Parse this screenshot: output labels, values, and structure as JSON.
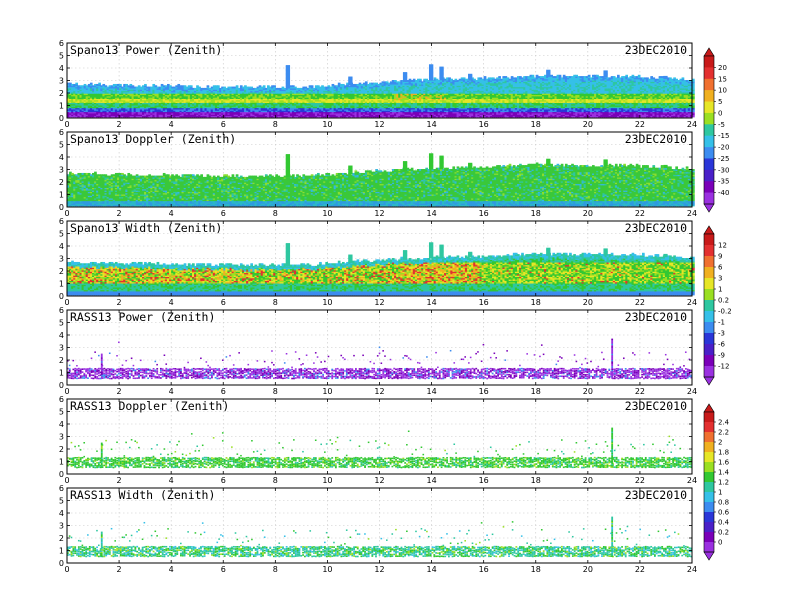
{
  "chart_data": [
    {
      "type": "heatmap",
      "title": "Spano13 Power (Zenith)",
      "date": "23DEC2010",
      "xlim": [
        0,
        24
      ],
      "ylim": [
        0,
        6
      ],
      "xticks": [
        0,
        2,
        4,
        6,
        8,
        10,
        12,
        14,
        16,
        18,
        20,
        22,
        24
      ],
      "yticks": [
        0,
        1,
        2,
        3,
        4,
        5,
        6
      ],
      "grid": true,
      "colorbar": {
        "labels": [
          "20",
          "15",
          "10",
          "5",
          "0",
          "-5",
          "-15",
          "-20",
          "-25",
          "-30",
          "-35",
          "-40"
        ],
        "extend": "both"
      },
      "top_height_km": [
        [
          0,
          2.6
        ],
        [
          6,
          2.4
        ],
        [
          9,
          2.4
        ],
        [
          12,
          2.8
        ],
        [
          14,
          3.0
        ],
        [
          16,
          3.1
        ],
        [
          18,
          3.3
        ],
        [
          22,
          3.2
        ],
        [
          24,
          3.0
        ]
      ]
    },
    {
      "type": "heatmap",
      "title": "Spano13 Doppler (Zenith)",
      "date": "23DEC2010",
      "xlim": [
        0,
        24
      ],
      "ylim": [
        0,
        6
      ],
      "xticks": [
        0,
        2,
        4,
        6,
        8,
        10,
        12,
        14,
        16,
        18,
        20,
        22,
        24
      ],
      "yticks": [
        0,
        1,
        2,
        3,
        4,
        5,
        6
      ],
      "grid": true,
      "top_height_km": [
        [
          0,
          2.6
        ],
        [
          6,
          2.4
        ],
        [
          9,
          2.4
        ],
        [
          12,
          2.8
        ],
        [
          14,
          3.0
        ],
        [
          16,
          3.1
        ],
        [
          18,
          3.3
        ],
        [
          22,
          3.2
        ],
        [
          24,
          3.0
        ]
      ]
    },
    {
      "type": "heatmap",
      "title": "Spano13 Width (Zenith)",
      "date": "23DEC2010",
      "xlim": [
        0,
        24
      ],
      "ylim": [
        0,
        6
      ],
      "xticks": [
        0,
        2,
        4,
        6,
        8,
        10,
        12,
        14,
        16,
        18,
        20,
        22,
        24
      ],
      "yticks": [
        0,
        1,
        2,
        3,
        4,
        5,
        6
      ],
      "grid": true,
      "colorbar": {
        "labels": [
          "12",
          "9",
          "6",
          "3",
          "1",
          "0.2",
          "-0.2",
          "-1",
          "-3",
          "-6",
          "-9",
          "-12"
        ],
        "extend": "both"
      },
      "top_height_km": [
        [
          0,
          2.6
        ],
        [
          6,
          2.4
        ],
        [
          9,
          2.4
        ],
        [
          12,
          2.8
        ],
        [
          14,
          3.0
        ],
        [
          16,
          3.1
        ],
        [
          18,
          3.3
        ],
        [
          22,
          3.2
        ],
        [
          24,
          3.0
        ]
      ]
    },
    {
      "type": "heatmap",
      "title": "RASS13 Power (Zenith)",
      "date": "23DEC2010",
      "xlim": [
        0,
        24
      ],
      "ylim": [
        0,
        6
      ],
      "xticks": [
        0,
        2,
        4,
        6,
        8,
        10,
        12,
        14,
        16,
        18,
        20,
        22,
        24
      ],
      "yticks": [
        0,
        1,
        2,
        3,
        4,
        5,
        6
      ],
      "grid": true,
      "band_km": [
        0.5,
        1.3
      ],
      "spikes": [
        {
          "x": 1.3,
          "top": 2.5
        },
        {
          "x": 20.9,
          "top": 3.7
        }
      ]
    },
    {
      "type": "heatmap",
      "title": "RASS13 Doppler (Zenith)",
      "date": "23DEC2010",
      "xlim": [
        0,
        24
      ],
      "ylim": [
        0,
        6
      ],
      "xticks": [
        0,
        2,
        4,
        6,
        8,
        10,
        12,
        14,
        16,
        18,
        20,
        22,
        24
      ],
      "yticks": [
        0,
        1,
        2,
        3,
        4,
        5,
        6
      ],
      "grid": true,
      "colorbar": {
        "labels": [
          "2.4",
          "2.2",
          "2",
          "1.8",
          "1.6",
          "1.4",
          "1.2",
          "1",
          "0.8",
          "0.6",
          "0.4",
          "0.2",
          "0"
        ],
        "extend": "both"
      },
      "band_km": [
        0.5,
        1.3
      ],
      "spikes": [
        {
          "x": 1.3,
          "top": 2.5
        },
        {
          "x": 20.9,
          "top": 3.7
        }
      ]
    },
    {
      "type": "heatmap",
      "title": "RASS13 Width (Zenith)",
      "date": "23DEC2010",
      "xlim": [
        0,
        24
      ],
      "ylim": [
        0,
        6
      ],
      "xticks": [
        0,
        2,
        4,
        6,
        8,
        10,
        12,
        14,
        16,
        18,
        20,
        22,
        24
      ],
      "yticks": [
        0,
        1,
        2,
        3,
        4,
        5,
        6
      ],
      "grid": true,
      "band_km": [
        0.5,
        1.3
      ],
      "spikes": [
        {
          "x": 1.3,
          "top": 2.5
        },
        {
          "x": 20.9,
          "top": 3.7
        }
      ]
    }
  ]
}
